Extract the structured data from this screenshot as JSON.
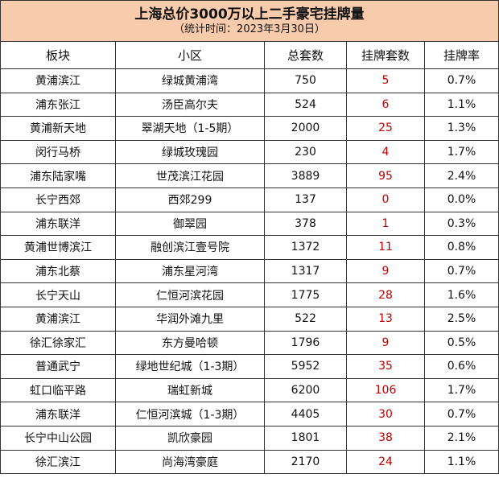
{
  "header": {
    "title": "上海总价3000万以上二手豪宅挂牌量",
    "subtitle": "（统计时间：2023年3月30日）"
  },
  "table": {
    "columns": [
      "板块",
      "小区",
      "总套数",
      "挂牌套数",
      "挂牌率"
    ],
    "rows": [
      [
        "黄浦滨江",
        "绿城黄浦湾",
        "750",
        "5",
        "0.7%"
      ],
      [
        "浦东张江",
        "汤臣高尔夫",
        "524",
        "6",
        "1.1%"
      ],
      [
        "黄浦新天地",
        "翠湖天地（1-5期）",
        "2000",
        "25",
        "1.3%"
      ],
      [
        "闵行马桥",
        "绿城玫瑰园",
        "230",
        "4",
        "1.7%"
      ],
      [
        "浦东陆家嘴",
        "世茂滨江花园",
        "3889",
        "95",
        "2.4%"
      ],
      [
        "长宁西郊",
        "西郊299",
        "137",
        "0",
        "0.0%"
      ],
      [
        "浦东联洋",
        "御翠园",
        "378",
        "1",
        "0.3%"
      ],
      [
        "黄浦世博滨江",
        "融创滨江壹号院",
        "1372",
        "11",
        "0.8%"
      ],
      [
        "浦东北蔡",
        "浦东星河湾",
        "1317",
        "9",
        "0.7%"
      ],
      [
        "长宁天山",
        "仁恒河滨花园",
        "1775",
        "28",
        "1.6%"
      ],
      [
        "黄浦滨江",
        "华润外滩九里",
        "522",
        "13",
        "2.5%"
      ],
      [
        "徐汇徐家汇",
        "东方曼哈顿",
        "1796",
        "9",
        "0.5%"
      ],
      [
        "普通武宁",
        "绿地世纪城（1-3期）",
        "5952",
        "35",
        "0.6%"
      ],
      [
        "虹口临平路",
        "瑞虹新城",
        "6200",
        "106",
        "1.7%"
      ],
      [
        "浦东联洋",
        "仁恒河滨城（1-3期）",
        "4405",
        "30",
        "0.7%"
      ],
      [
        "长宁中山公园",
        "凯欣豪园",
        "1801",
        "38",
        "2.1%"
      ],
      [
        "徐汇滨江",
        "尚海湾豪庭",
        "2170",
        "24",
        "1.1%"
      ]
    ]
  }
}
